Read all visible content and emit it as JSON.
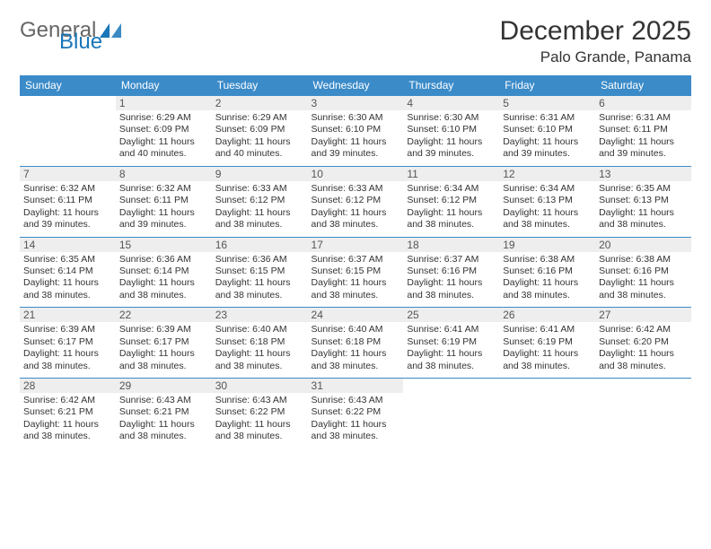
{
  "logo": {
    "text1": "General",
    "text2": "Blue"
  },
  "header": {
    "month_title": "December 2025",
    "location": "Palo Grande, Panama"
  },
  "colors": {
    "header_bg": "#3b8bc9",
    "header_text": "#ffffff",
    "daynum_bg": "#eeeeee",
    "daynum_border": "#3b8bc9",
    "text": "#333333",
    "logo_gray": "#666666",
    "logo_blue": "#1976b8",
    "page_bg": "#ffffff"
  },
  "weekdays": [
    "Sunday",
    "Monday",
    "Tuesday",
    "Wednesday",
    "Thursday",
    "Friday",
    "Saturday"
  ],
  "weeks": [
    [
      null,
      {
        "day": "1",
        "sunrise": "Sunrise: 6:29 AM",
        "sunset": "Sunset: 6:09 PM",
        "daylight": "Daylight: 11 hours and 40 minutes."
      },
      {
        "day": "2",
        "sunrise": "Sunrise: 6:29 AM",
        "sunset": "Sunset: 6:09 PM",
        "daylight": "Daylight: 11 hours and 40 minutes."
      },
      {
        "day": "3",
        "sunrise": "Sunrise: 6:30 AM",
        "sunset": "Sunset: 6:10 PM",
        "daylight": "Daylight: 11 hours and 39 minutes."
      },
      {
        "day": "4",
        "sunrise": "Sunrise: 6:30 AM",
        "sunset": "Sunset: 6:10 PM",
        "daylight": "Daylight: 11 hours and 39 minutes."
      },
      {
        "day": "5",
        "sunrise": "Sunrise: 6:31 AM",
        "sunset": "Sunset: 6:10 PM",
        "daylight": "Daylight: 11 hours and 39 minutes."
      },
      {
        "day": "6",
        "sunrise": "Sunrise: 6:31 AM",
        "sunset": "Sunset: 6:11 PM",
        "daylight": "Daylight: 11 hours and 39 minutes."
      }
    ],
    [
      {
        "day": "7",
        "sunrise": "Sunrise: 6:32 AM",
        "sunset": "Sunset: 6:11 PM",
        "daylight": "Daylight: 11 hours and 39 minutes."
      },
      {
        "day": "8",
        "sunrise": "Sunrise: 6:32 AM",
        "sunset": "Sunset: 6:11 PM",
        "daylight": "Daylight: 11 hours and 39 minutes."
      },
      {
        "day": "9",
        "sunrise": "Sunrise: 6:33 AM",
        "sunset": "Sunset: 6:12 PM",
        "daylight": "Daylight: 11 hours and 38 minutes."
      },
      {
        "day": "10",
        "sunrise": "Sunrise: 6:33 AM",
        "sunset": "Sunset: 6:12 PM",
        "daylight": "Daylight: 11 hours and 38 minutes."
      },
      {
        "day": "11",
        "sunrise": "Sunrise: 6:34 AM",
        "sunset": "Sunset: 6:12 PM",
        "daylight": "Daylight: 11 hours and 38 minutes."
      },
      {
        "day": "12",
        "sunrise": "Sunrise: 6:34 AM",
        "sunset": "Sunset: 6:13 PM",
        "daylight": "Daylight: 11 hours and 38 minutes."
      },
      {
        "day": "13",
        "sunrise": "Sunrise: 6:35 AM",
        "sunset": "Sunset: 6:13 PM",
        "daylight": "Daylight: 11 hours and 38 minutes."
      }
    ],
    [
      {
        "day": "14",
        "sunrise": "Sunrise: 6:35 AM",
        "sunset": "Sunset: 6:14 PM",
        "daylight": "Daylight: 11 hours and 38 minutes."
      },
      {
        "day": "15",
        "sunrise": "Sunrise: 6:36 AM",
        "sunset": "Sunset: 6:14 PM",
        "daylight": "Daylight: 11 hours and 38 minutes."
      },
      {
        "day": "16",
        "sunrise": "Sunrise: 6:36 AM",
        "sunset": "Sunset: 6:15 PM",
        "daylight": "Daylight: 11 hours and 38 minutes."
      },
      {
        "day": "17",
        "sunrise": "Sunrise: 6:37 AM",
        "sunset": "Sunset: 6:15 PM",
        "daylight": "Daylight: 11 hours and 38 minutes."
      },
      {
        "day": "18",
        "sunrise": "Sunrise: 6:37 AM",
        "sunset": "Sunset: 6:16 PM",
        "daylight": "Daylight: 11 hours and 38 minutes."
      },
      {
        "day": "19",
        "sunrise": "Sunrise: 6:38 AM",
        "sunset": "Sunset: 6:16 PM",
        "daylight": "Daylight: 11 hours and 38 minutes."
      },
      {
        "day": "20",
        "sunrise": "Sunrise: 6:38 AM",
        "sunset": "Sunset: 6:16 PM",
        "daylight": "Daylight: 11 hours and 38 minutes."
      }
    ],
    [
      {
        "day": "21",
        "sunrise": "Sunrise: 6:39 AM",
        "sunset": "Sunset: 6:17 PM",
        "daylight": "Daylight: 11 hours and 38 minutes."
      },
      {
        "day": "22",
        "sunrise": "Sunrise: 6:39 AM",
        "sunset": "Sunset: 6:17 PM",
        "daylight": "Daylight: 11 hours and 38 minutes."
      },
      {
        "day": "23",
        "sunrise": "Sunrise: 6:40 AM",
        "sunset": "Sunset: 6:18 PM",
        "daylight": "Daylight: 11 hours and 38 minutes."
      },
      {
        "day": "24",
        "sunrise": "Sunrise: 6:40 AM",
        "sunset": "Sunset: 6:18 PM",
        "daylight": "Daylight: 11 hours and 38 minutes."
      },
      {
        "day": "25",
        "sunrise": "Sunrise: 6:41 AM",
        "sunset": "Sunset: 6:19 PM",
        "daylight": "Daylight: 11 hours and 38 minutes."
      },
      {
        "day": "26",
        "sunrise": "Sunrise: 6:41 AM",
        "sunset": "Sunset: 6:19 PM",
        "daylight": "Daylight: 11 hours and 38 minutes."
      },
      {
        "day": "27",
        "sunrise": "Sunrise: 6:42 AM",
        "sunset": "Sunset: 6:20 PM",
        "daylight": "Daylight: 11 hours and 38 minutes."
      }
    ],
    [
      {
        "day": "28",
        "sunrise": "Sunrise: 6:42 AM",
        "sunset": "Sunset: 6:21 PM",
        "daylight": "Daylight: 11 hours and 38 minutes."
      },
      {
        "day": "29",
        "sunrise": "Sunrise: 6:43 AM",
        "sunset": "Sunset: 6:21 PM",
        "daylight": "Daylight: 11 hours and 38 minutes."
      },
      {
        "day": "30",
        "sunrise": "Sunrise: 6:43 AM",
        "sunset": "Sunset: 6:22 PM",
        "daylight": "Daylight: 11 hours and 38 minutes."
      },
      {
        "day": "31",
        "sunrise": "Sunrise: 6:43 AM",
        "sunset": "Sunset: 6:22 PM",
        "daylight": "Daylight: 11 hours and 38 minutes."
      },
      null,
      null,
      null
    ]
  ]
}
